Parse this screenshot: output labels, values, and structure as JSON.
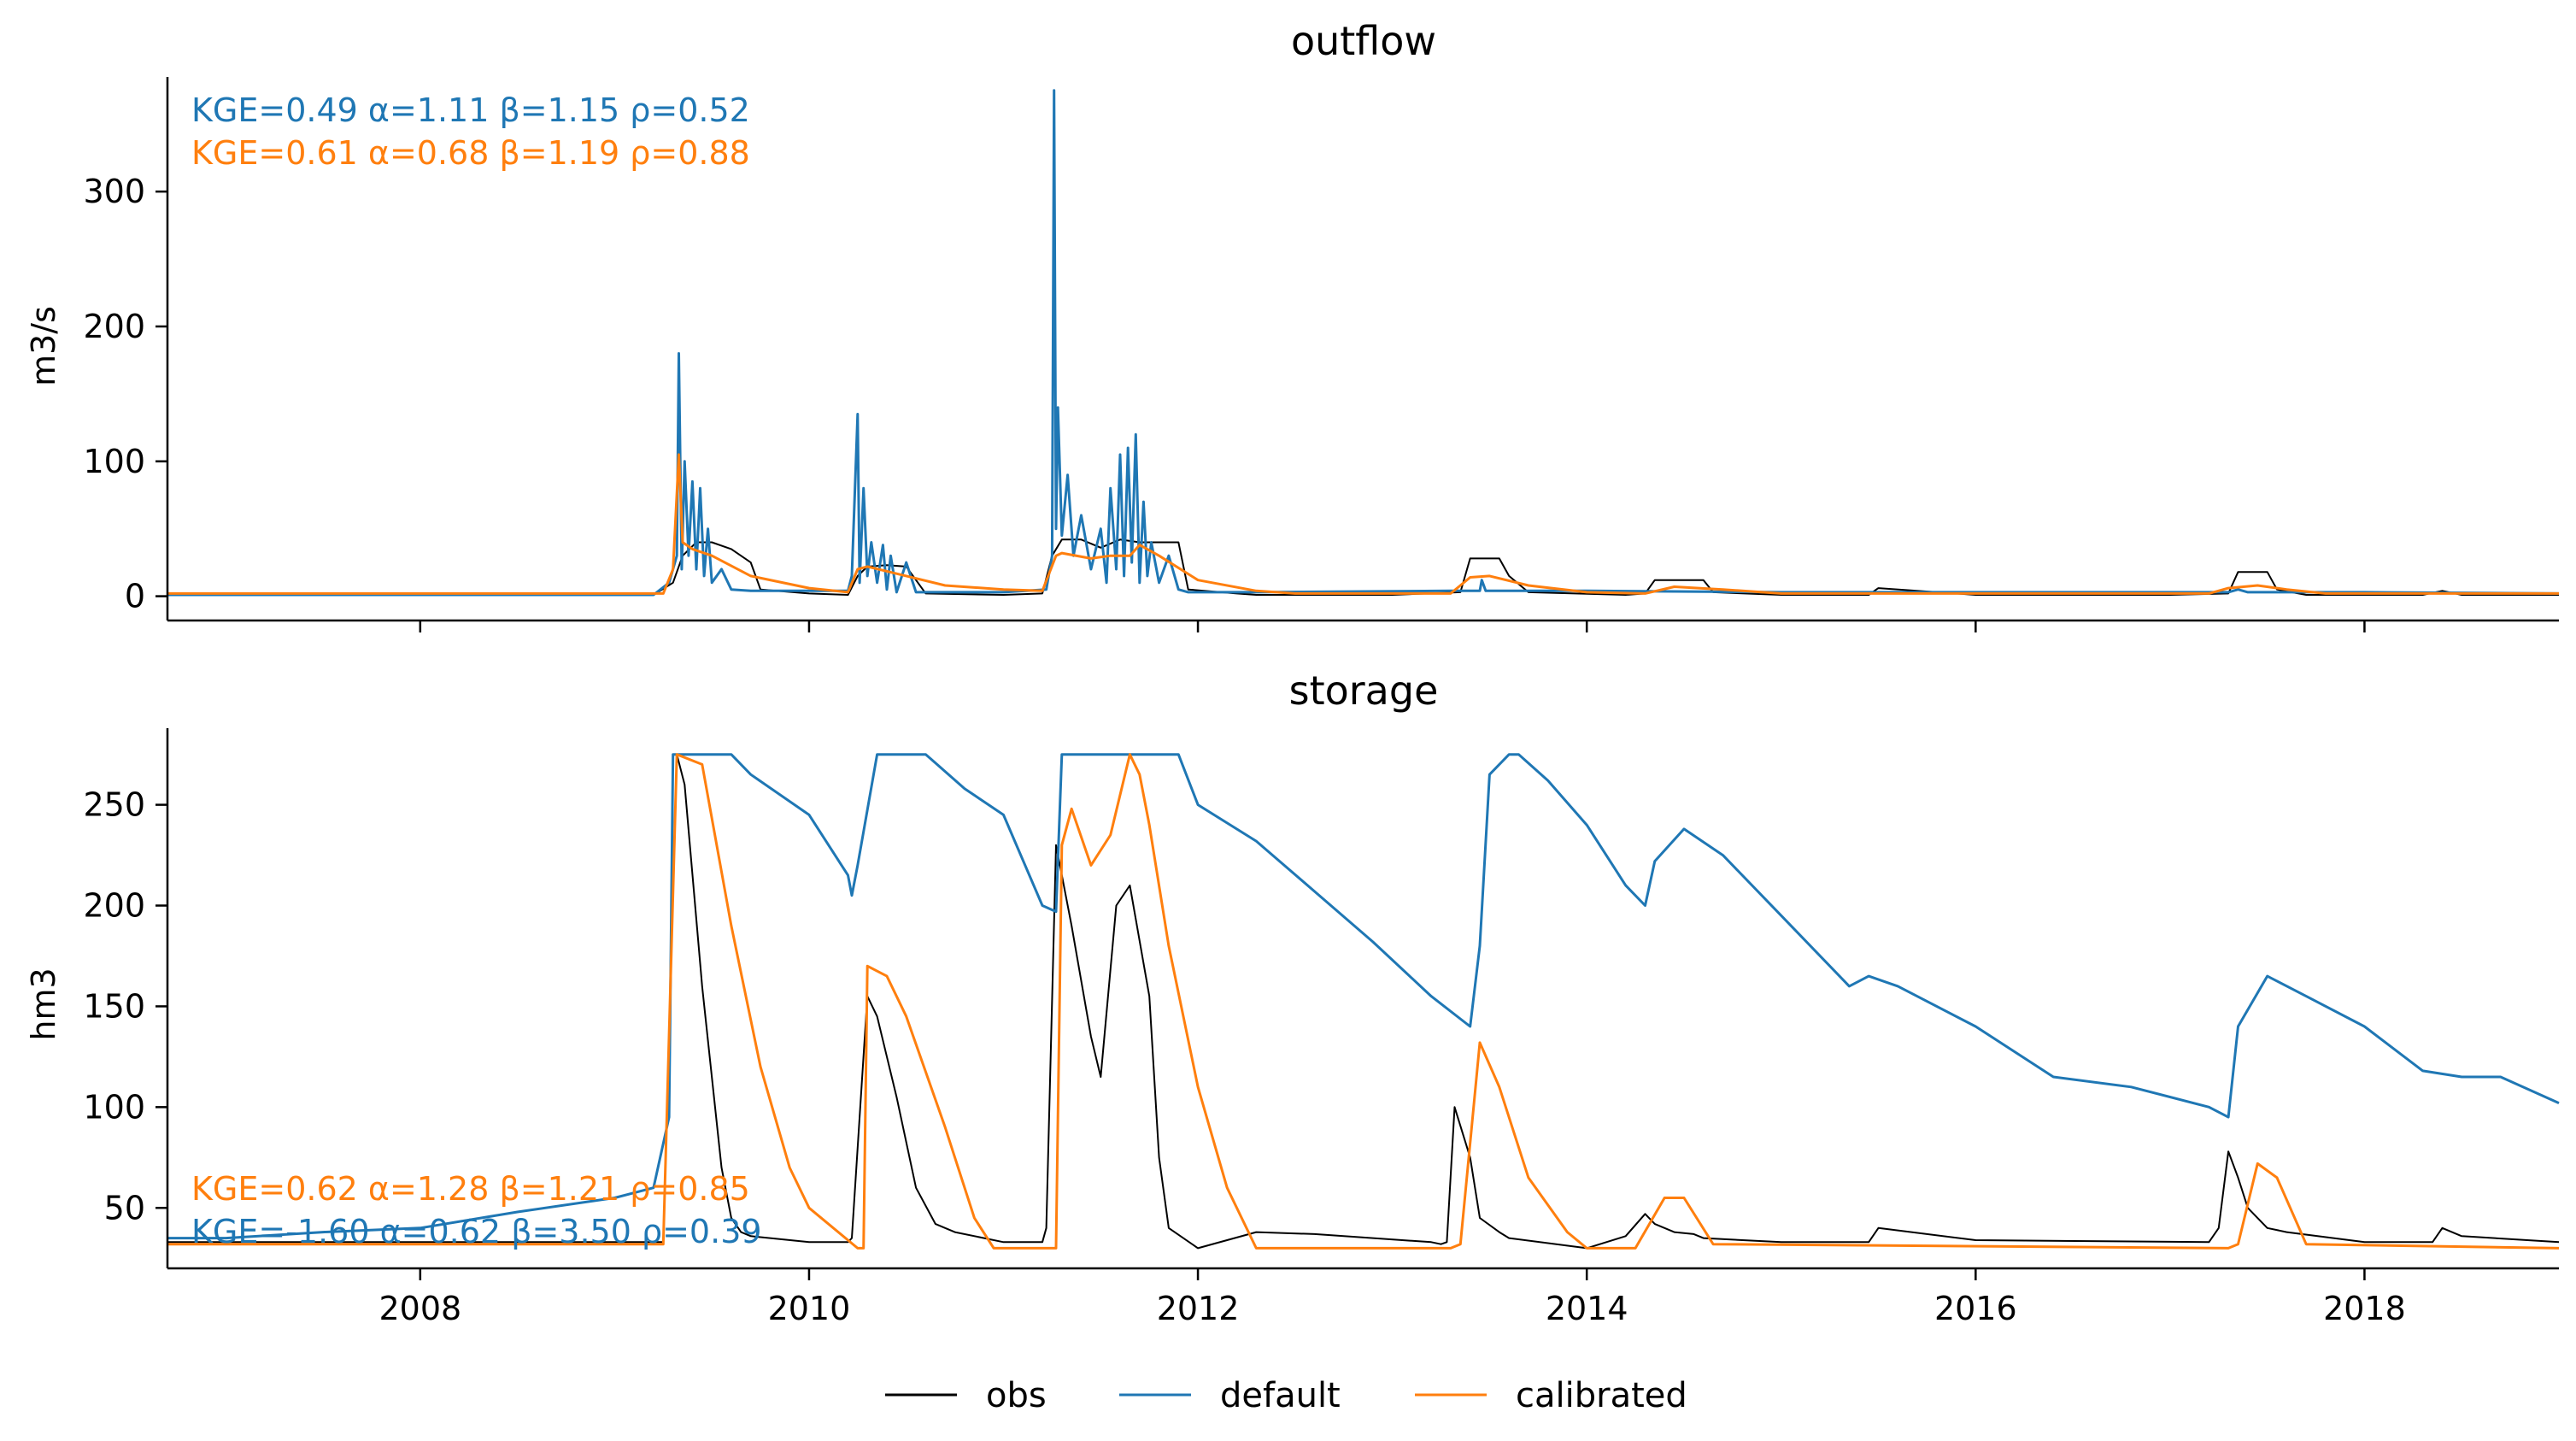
{
  "colors": {
    "obs": "#000000",
    "default": "#1f77b4",
    "calibrated": "#ff7f0e"
  },
  "legend": {
    "placement": "bottom-center",
    "items": [
      {
        "label": "obs",
        "color": "#000000"
      },
      {
        "label": "default",
        "color": "#1f77b4"
      },
      {
        "label": "calibrated",
        "color": "#ff7f0e"
      }
    ]
  },
  "chart_data": [
    {
      "type": "line",
      "title": "outflow",
      "ylabel": "m3/s",
      "xlabel": "",
      "xlim": [
        2006.7,
        2019.0
      ],
      "ylim": [
        -18,
        385
      ],
      "xticks": [
        2008,
        2010,
        2012,
        2014,
        2016,
        2018
      ],
      "xticklabels": [],
      "yticks": [
        0,
        100,
        200,
        300
      ],
      "yticklabels": [
        "0",
        "100",
        "200",
        "300"
      ],
      "grid": false,
      "annotations": [
        {
          "text": "KGE=0.49  α=1.11  β=1.15  ρ=0.52",
          "color": "#1f77b4"
        },
        {
          "text": "KGE=0.61  α=0.68  β=1.19  ρ=0.88",
          "color": "#ff7f0e"
        }
      ],
      "series": [
        {
          "name": "obs",
          "color": "#000000",
          "width": 2,
          "x": [
            2006.7,
            2009.2,
            2009.3,
            2009.35,
            2009.42,
            2009.5,
            2009.6,
            2009.7,
            2009.75,
            2010.0,
            2010.2,
            2010.25,
            2010.3,
            2010.4,
            2010.5,
            2010.6,
            2011.0,
            2011.2,
            2011.25,
            2011.3,
            2011.4,
            2011.5,
            2011.6,
            2011.7,
            2011.8,
            2011.9,
            2011.95,
            2012.2,
            2012.3,
            2013.0,
            2013.35,
            2013.4,
            2013.55,
            2013.6,
            2013.7,
            2014.2,
            2014.3,
            2014.35,
            2014.6,
            2014.65,
            2015.0,
            2015.45,
            2015.5,
            2016.0,
            2016.5,
            2017.0,
            2017.3,
            2017.35,
            2017.5,
            2017.55,
            2017.7,
            2018.3,
            2018.4,
            2018.5,
            2019.0
          ],
          "y": [
            1,
            1,
            10,
            30,
            40,
            40,
            35,
            25,
            5,
            2,
            1,
            15,
            22,
            23,
            22,
            2,
            1,
            2,
            30,
            42,
            42,
            36,
            42,
            40,
            40,
            40,
            5,
            2,
            1,
            1,
            3,
            28,
            28,
            15,
            3,
            1,
            2,
            12,
            12,
            3,
            1,
            1,
            6,
            1,
            1,
            1,
            2,
            18,
            18,
            5,
            1,
            1,
            4,
            1,
            1
          ]
        },
        {
          "name": "default",
          "color": "#1f77b4",
          "width": 3,
          "x": [
            2006.7,
            2008.0,
            2009.2,
            2009.28,
            2009.32,
            2009.33,
            2009.345,
            2009.36,
            2009.38,
            2009.4,
            2009.42,
            2009.44,
            2009.46,
            2009.48,
            2009.5,
            2009.55,
            2009.6,
            2009.7,
            2010.2,
            2010.22,
            2010.25,
            2010.26,
            2010.28,
            2010.3,
            2010.32,
            2010.35,
            2010.38,
            2010.4,
            2010.42,
            2010.45,
            2010.5,
            2010.55,
            2010.6,
            2011.0,
            2011.22,
            2011.25,
            2011.26,
            2011.27,
            2011.28,
            2011.3,
            2011.33,
            2011.36,
            2011.4,
            2011.45,
            2011.5,
            2011.53,
            2011.55,
            2011.58,
            2011.6,
            2011.62,
            2011.64,
            2011.66,
            2011.68,
            2011.7,
            2011.72,
            2011.74,
            2011.76,
            2011.8,
            2011.85,
            2011.9,
            2011.95,
            2012.3,
            2013.3,
            2013.45,
            2013.46,
            2013.48,
            2013.5,
            2014.0,
            2015.0,
            2016.0,
            2017.0,
            2017.3,
            2017.35,
            2017.4,
            2017.5,
            2018.0,
            2019.0
          ],
          "y": [
            1,
            1,
            1,
            10,
            30,
            180,
            20,
            100,
            30,
            85,
            20,
            80,
            15,
            50,
            10,
            20,
            5,
            4,
            4,
            15,
            135,
            10,
            80,
            15,
            40,
            10,
            38,
            5,
            30,
            3,
            25,
            3,
            3,
            3,
            5,
            30,
            375,
            50,
            140,
            45,
            90,
            30,
            60,
            20,
            50,
            10,
            80,
            20,
            105,
            15,
            110,
            25,
            120,
            10,
            70,
            15,
            40,
            10,
            30,
            5,
            3,
            3,
            4,
            4,
            12,
            4,
            4,
            4,
            3,
            3,
            3,
            3,
            5,
            3,
            3,
            3,
            2
          ]
        },
        {
          "name": "calibrated",
          "color": "#ff7f0e",
          "width": 3,
          "x": [
            2006.7,
            2009.25,
            2009.3,
            2009.33,
            2009.35,
            2009.4,
            2009.5,
            2009.7,
            2010.0,
            2010.2,
            2010.25,
            2010.3,
            2010.5,
            2010.7,
            2011.0,
            2011.2,
            2011.27,
            2011.3,
            2011.45,
            2011.55,
            2011.65,
            2011.7,
            2011.8,
            2012.0,
            2012.3,
            2012.5,
            2013.3,
            2013.4,
            2013.5,
            2013.7,
            2014.0,
            2014.3,
            2014.45,
            2014.7,
            2015.0,
            2017.2,
            2017.3,
            2017.45,
            2017.6,
            2017.8,
            2019.0
          ],
          "y": [
            2,
            2,
            20,
            105,
            40,
            35,
            30,
            15,
            6,
            3,
            20,
            22,
            15,
            8,
            5,
            4,
            30,
            32,
            28,
            30,
            30,
            38,
            30,
            12,
            4,
            2,
            2,
            14,
            15,
            8,
            3,
            2,
            7,
            5,
            2,
            2,
            6,
            8,
            5,
            2,
            2
          ]
        }
      ]
    },
    {
      "type": "line",
      "title": "storage",
      "ylabel": "hm3",
      "xlabel": "",
      "xlim": [
        2006.7,
        2019.0
      ],
      "ylim": [
        20,
        288
      ],
      "xticks": [
        2008,
        2010,
        2012,
        2014,
        2016,
        2018
      ],
      "xticklabels": [
        "2008",
        "2010",
        "2012",
        "2014",
        "2016",
        "2018"
      ],
      "yticks": [
        50,
        100,
        150,
        200,
        250
      ],
      "yticklabels": [
        "50",
        "100",
        "150",
        "200",
        "250"
      ],
      "grid": false,
      "annotations": [
        {
          "text": "KGE=0.62  α=1.28  β=1.21  ρ=0.85",
          "color": "#ff7f0e"
        },
        {
          "text": "KGE=-1.60  α=0.62  β=3.50  ρ=0.39",
          "color": "#1f77b4"
        }
      ],
      "series": [
        {
          "name": "obs",
          "color": "#000000",
          "width": 2,
          "x": [
            2006.7,
            2009.25,
            2009.32,
            2009.36,
            2009.45,
            2009.55,
            2009.6,
            2009.65,
            2009.7,
            2010.0,
            2010.2,
            2010.22,
            2010.3,
            2010.35,
            2010.45,
            2010.55,
            2010.65,
            2010.7,
            2010.75,
            2011.0,
            2011.2,
            2011.22,
            2011.27,
            2011.35,
            2011.45,
            2011.5,
            2011.58,
            2011.65,
            2011.75,
            2011.8,
            2011.85,
            2012.0,
            2012.3,
            2012.6,
            2013.2,
            2013.25,
            2013.28,
            2013.32,
            2013.4,
            2013.45,
            2013.55,
            2013.6,
            2014.0,
            2014.2,
            2014.3,
            2014.35,
            2014.45,
            2014.55,
            2014.6,
            2015.0,
            2015.45,
            2015.5,
            2016.0,
            2017.2,
            2017.25,
            2017.3,
            2017.35,
            2017.4,
            2017.5,
            2017.6,
            2018.0,
            2018.35,
            2018.4,
            2018.5,
            2019.0
          ],
          "y": [
            33,
            33,
            275,
            260,
            160,
            70,
            45,
            38,
            36,
            33,
            33,
            35,
            155,
            145,
            105,
            60,
            42,
            40,
            38,
            33,
            33,
            40,
            230,
            190,
            135,
            115,
            200,
            210,
            155,
            75,
            40,
            30,
            38,
            37,
            33,
            32,
            33,
            100,
            75,
            45,
            38,
            35,
            30,
            36,
            47,
            42,
            38,
            37,
            35,
            33,
            33,
            40,
            34,
            33,
            40,
            78,
            65,
            50,
            40,
            38,
            33,
            33,
            40,
            36,
            33
          ]
        },
        {
          "name": "default",
          "color": "#1f77b4",
          "width": 3,
          "x": [
            2006.7,
            2007.0,
            2007.5,
            2008.0,
            2008.5,
            2009.0,
            2009.2,
            2009.28,
            2009.3,
            2009.35,
            2009.6,
            2009.7,
            2010.0,
            2010.2,
            2010.22,
            2010.25,
            2010.35,
            2010.6,
            2010.8,
            2011.0,
            2011.2,
            2011.27,
            2011.3,
            2011.5,
            2011.85,
            2011.9,
            2012.0,
            2012.3,
            2012.6,
            2012.9,
            2013.2,
            2013.4,
            2013.45,
            2013.5,
            2013.6,
            2013.65,
            2013.8,
            2014.0,
            2014.2,
            2014.3,
            2014.35,
            2014.5,
            2014.7,
            2015.0,
            2015.35,
            2015.45,
            2015.6,
            2016.0,
            2016.4,
            2016.8,
            2017.2,
            2017.3,
            2017.35,
            2017.5,
            2017.7,
            2018.0,
            2018.3,
            2018.5,
            2018.7,
            2019.0
          ],
          "y": [
            35,
            35,
            38,
            40,
            48,
            55,
            60,
            95,
            275,
            275,
            275,
            265,
            245,
            215,
            205,
            220,
            275,
            275,
            258,
            245,
            200,
            197,
            275,
            275,
            275,
            275,
            250,
            232,
            207,
            182,
            155,
            140,
            180,
            265,
            275,
            275,
            262,
            240,
            210,
            200,
            222,
            238,
            225,
            195,
            160,
            165,
            160,
            140,
            115,
            110,
            100,
            95,
            140,
            165,
            155,
            140,
            118,
            115,
            115,
            102
          ]
        },
        {
          "name": "calibrated",
          "color": "#ff7f0e",
          "width": 3,
          "x": [
            2006.7,
            2009.25,
            2009.32,
            2009.45,
            2009.6,
            2009.75,
            2009.9,
            2010.0,
            2010.25,
            2010.28,
            2010.3,
            2010.4,
            2010.5,
            2010.7,
            2010.85,
            2010.95,
            2011.2,
            2011.27,
            2011.3,
            2011.35,
            2011.45,
            2011.55,
            2011.65,
            2011.7,
            2011.75,
            2011.85,
            2012.0,
            2012.15,
            2012.3,
            2013.3,
            2013.35,
            2013.45,
            2013.55,
            2013.7,
            2013.9,
            2014.0,
            2014.25,
            2014.4,
            2014.5,
            2014.65,
            2017.3,
            2017.35,
            2017.45,
            2017.55,
            2017.7,
            2019.0
          ],
          "y": [
            32,
            32,
            275,
            270,
            190,
            120,
            70,
            50,
            30,
            30,
            170,
            165,
            145,
            90,
            45,
            30,
            30,
            30,
            230,
            248,
            220,
            235,
            275,
            265,
            240,
            180,
            110,
            60,
            30,
            30,
            32,
            132,
            110,
            65,
            38,
            30,
            30,
            55,
            55,
            32,
            30,
            32,
            72,
            65,
            32,
            30
          ]
        }
      ]
    }
  ]
}
